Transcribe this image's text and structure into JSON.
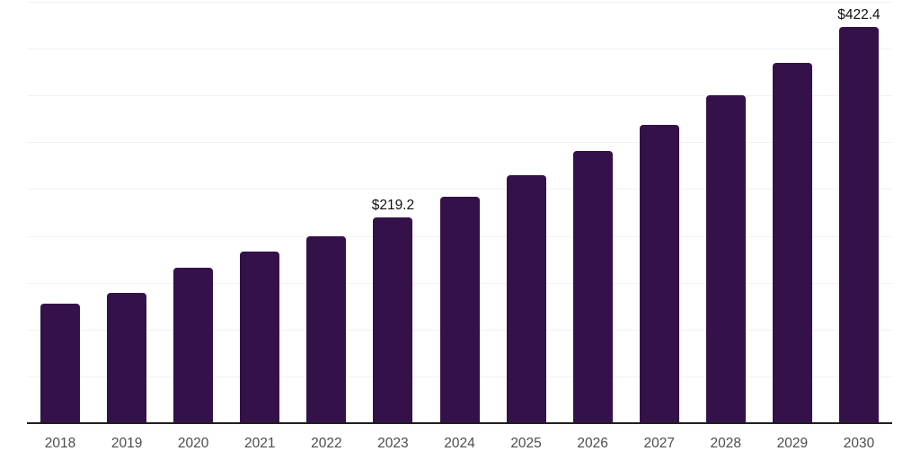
{
  "chart_data": {
    "type": "bar",
    "title": "",
    "xlabel": "",
    "ylabel": "",
    "categories": [
      "2018",
      "2019",
      "2020",
      "2021",
      "2022",
      "2023",
      "2024",
      "2025",
      "2026",
      "2027",
      "2028",
      "2029",
      "2030"
    ],
    "values": [
      127,
      138,
      165,
      182,
      199,
      219.2,
      241,
      264,
      290,
      318,
      349,
      384,
      422.4
    ],
    "data_labels": [
      {
        "category": "2023",
        "label": "$219.2"
      },
      {
        "category": "2030",
        "label": "$422.4"
      }
    ],
    "ylim": [
      0,
      450
    ],
    "gridline_step": 50,
    "grid": true,
    "legend_position": "none",
    "y_axis_labels_visible": false,
    "colors": {
      "bar": "#351149",
      "gridline": "#f2f2f2",
      "axis": "#1f1f1f",
      "tick_text": "#4d4d4d",
      "value_text": "#111111",
      "background": "#ffffff"
    }
  }
}
